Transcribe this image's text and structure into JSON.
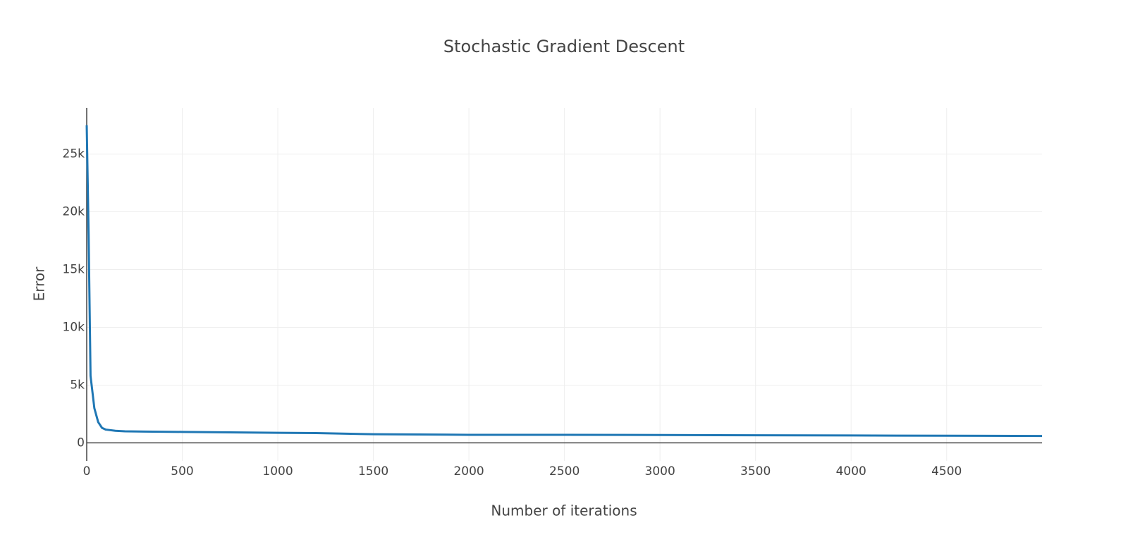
{
  "chart_data": {
    "type": "line",
    "title": "Stochastic Gradient Descent",
    "x_label": "Number of iterations",
    "y_label": "Error",
    "x": [
      0,
      10,
      20,
      40,
      60,
      80,
      100,
      150,
      200,
      300,
      500,
      750,
      1000,
      1200,
      1500,
      2000,
      2500,
      3000,
      3500,
      4000,
      4500,
      4999
    ],
    "series": [
      {
        "name": "Error",
        "color": "#1f77b4",
        "values": [
          27500,
          18000,
          5800,
          3000,
          1800,
          1300,
          1150,
          1050,
          1000,
          980,
          950,
          910,
          870,
          850,
          750,
          700,
          700,
          680,
          660,
          640,
          620,
          600
        ]
      }
    ],
    "xlim": [
      0,
      4999
    ],
    "ylim": [
      -1560,
      29000
    ],
    "xticks": [
      0,
      500,
      1000,
      1500,
      2000,
      2500,
      3000,
      3500,
      4000,
      4500
    ],
    "yticks": [
      0,
      {
        "value": 5000,
        "label": "5k"
      },
      {
        "value": 10000,
        "label": "10k"
      },
      {
        "value": 15000,
        "label": "15k"
      },
      {
        "value": 20000,
        "label": "20k"
      },
      {
        "value": 25000,
        "label": "25k"
      }
    ],
    "grid": true
  }
}
